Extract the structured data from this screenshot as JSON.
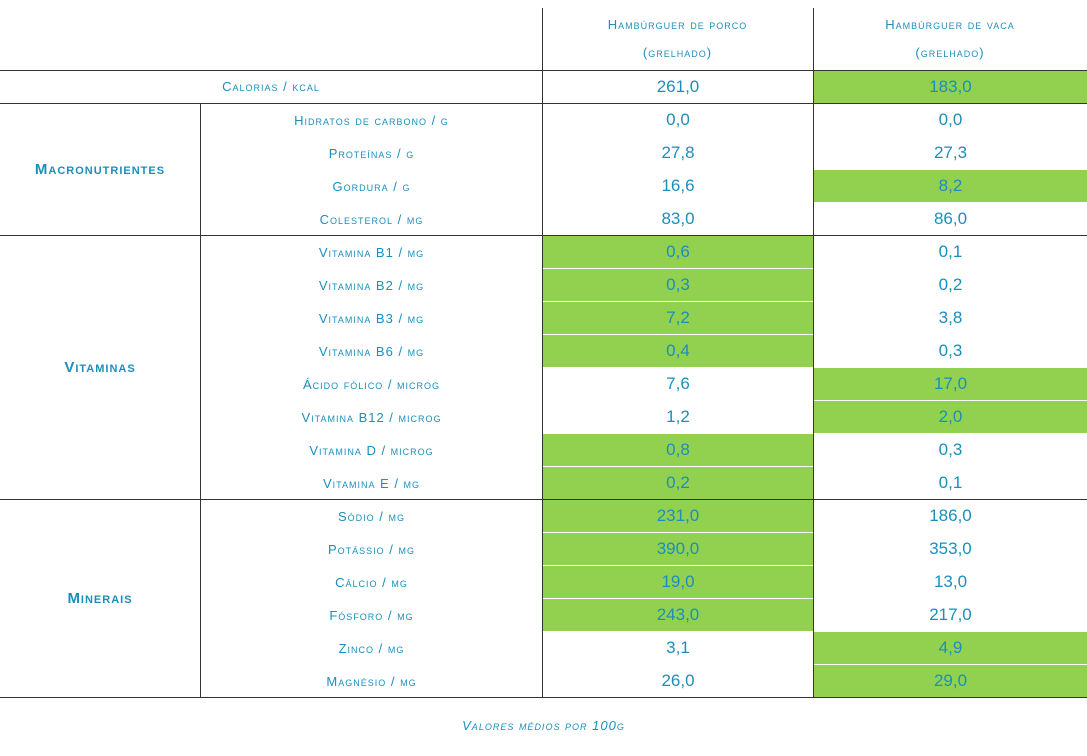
{
  "headers": {
    "pork": [
      "Hambúrguer de porco",
      "(grelhado)"
    ],
    "beef": [
      "Hambúrguer de vaca",
      "(grelhado)"
    ]
  },
  "calories": {
    "label": "Calorias / kcal",
    "pork": "261,0",
    "beef": "183,0",
    "highlight": "beef"
  },
  "groups": [
    {
      "name": "Macronutrientes",
      "rows": [
        {
          "label": "Hidratos de carbono / g",
          "pork": "0,0",
          "beef": "0,0",
          "highlight": ""
        },
        {
          "label": "Proteínas / g",
          "pork": "27,8",
          "beef": "27,3",
          "highlight": ""
        },
        {
          "label": "Gordura / g",
          "pork": "16,6",
          "beef": "8,2",
          "highlight": "beef"
        },
        {
          "label": "Colesterol / mg",
          "pork": "83,0",
          "beef": "86,0",
          "highlight": ""
        }
      ]
    },
    {
      "name": "Vitaminas",
      "rows": [
        {
          "label": "Vitamina B1 / mg",
          "pork": "0,6",
          "beef": "0,1",
          "highlight": "pork"
        },
        {
          "label": "Vitamina B2 / mg",
          "pork": "0,3",
          "beef": "0,2",
          "highlight": "pork"
        },
        {
          "label": "Vitamina B3 / mg",
          "pork": "7,2",
          "beef": "3,8",
          "highlight": "pork"
        },
        {
          "label": "Vitamina B6 / mg",
          "pork": "0,4",
          "beef": "0,3",
          "highlight": "pork"
        },
        {
          "label": "Ácido fólico / microg",
          "pork": "7,6",
          "beef": "17,0",
          "highlight": "beef"
        },
        {
          "label": "Vitamina B12 / microg",
          "pork": "1,2",
          "beef": "2,0",
          "highlight": "beef"
        },
        {
          "label": "Vitamina D / microg",
          "pork": "0,8",
          "beef": "0,3",
          "highlight": "pork"
        },
        {
          "label": "Vitamina E / mg",
          "pork": "0,2",
          "beef": "0,1",
          "highlight": "pork"
        }
      ]
    },
    {
      "name": "Minerais",
      "rows": [
        {
          "label": "Sódio / mg",
          "pork": "231,0",
          "beef": "186,0",
          "highlight": "pork"
        },
        {
          "label": "Potássio / mg",
          "pork": "390,0",
          "beef": "353,0",
          "highlight": "pork"
        },
        {
          "label": "Cálcio / mg",
          "pork": "19,0",
          "beef": "13,0",
          "highlight": "pork"
        },
        {
          "label": "Fósforo / mg",
          "pork": "243,0",
          "beef": "217,0",
          "highlight": "pork"
        },
        {
          "label": "Zinco / mg",
          "pork": "3,1",
          "beef": "4,9",
          "highlight": "beef"
        },
        {
          "label": "Magnésio / mg",
          "pork": "26,0",
          "beef": "29,0",
          "highlight": "beef"
        }
      ]
    }
  ],
  "footer": "Valores médios por 100g",
  "colors": {
    "text": "#1a8fbd",
    "highlight": "#92d050",
    "lines": "#333333"
  }
}
